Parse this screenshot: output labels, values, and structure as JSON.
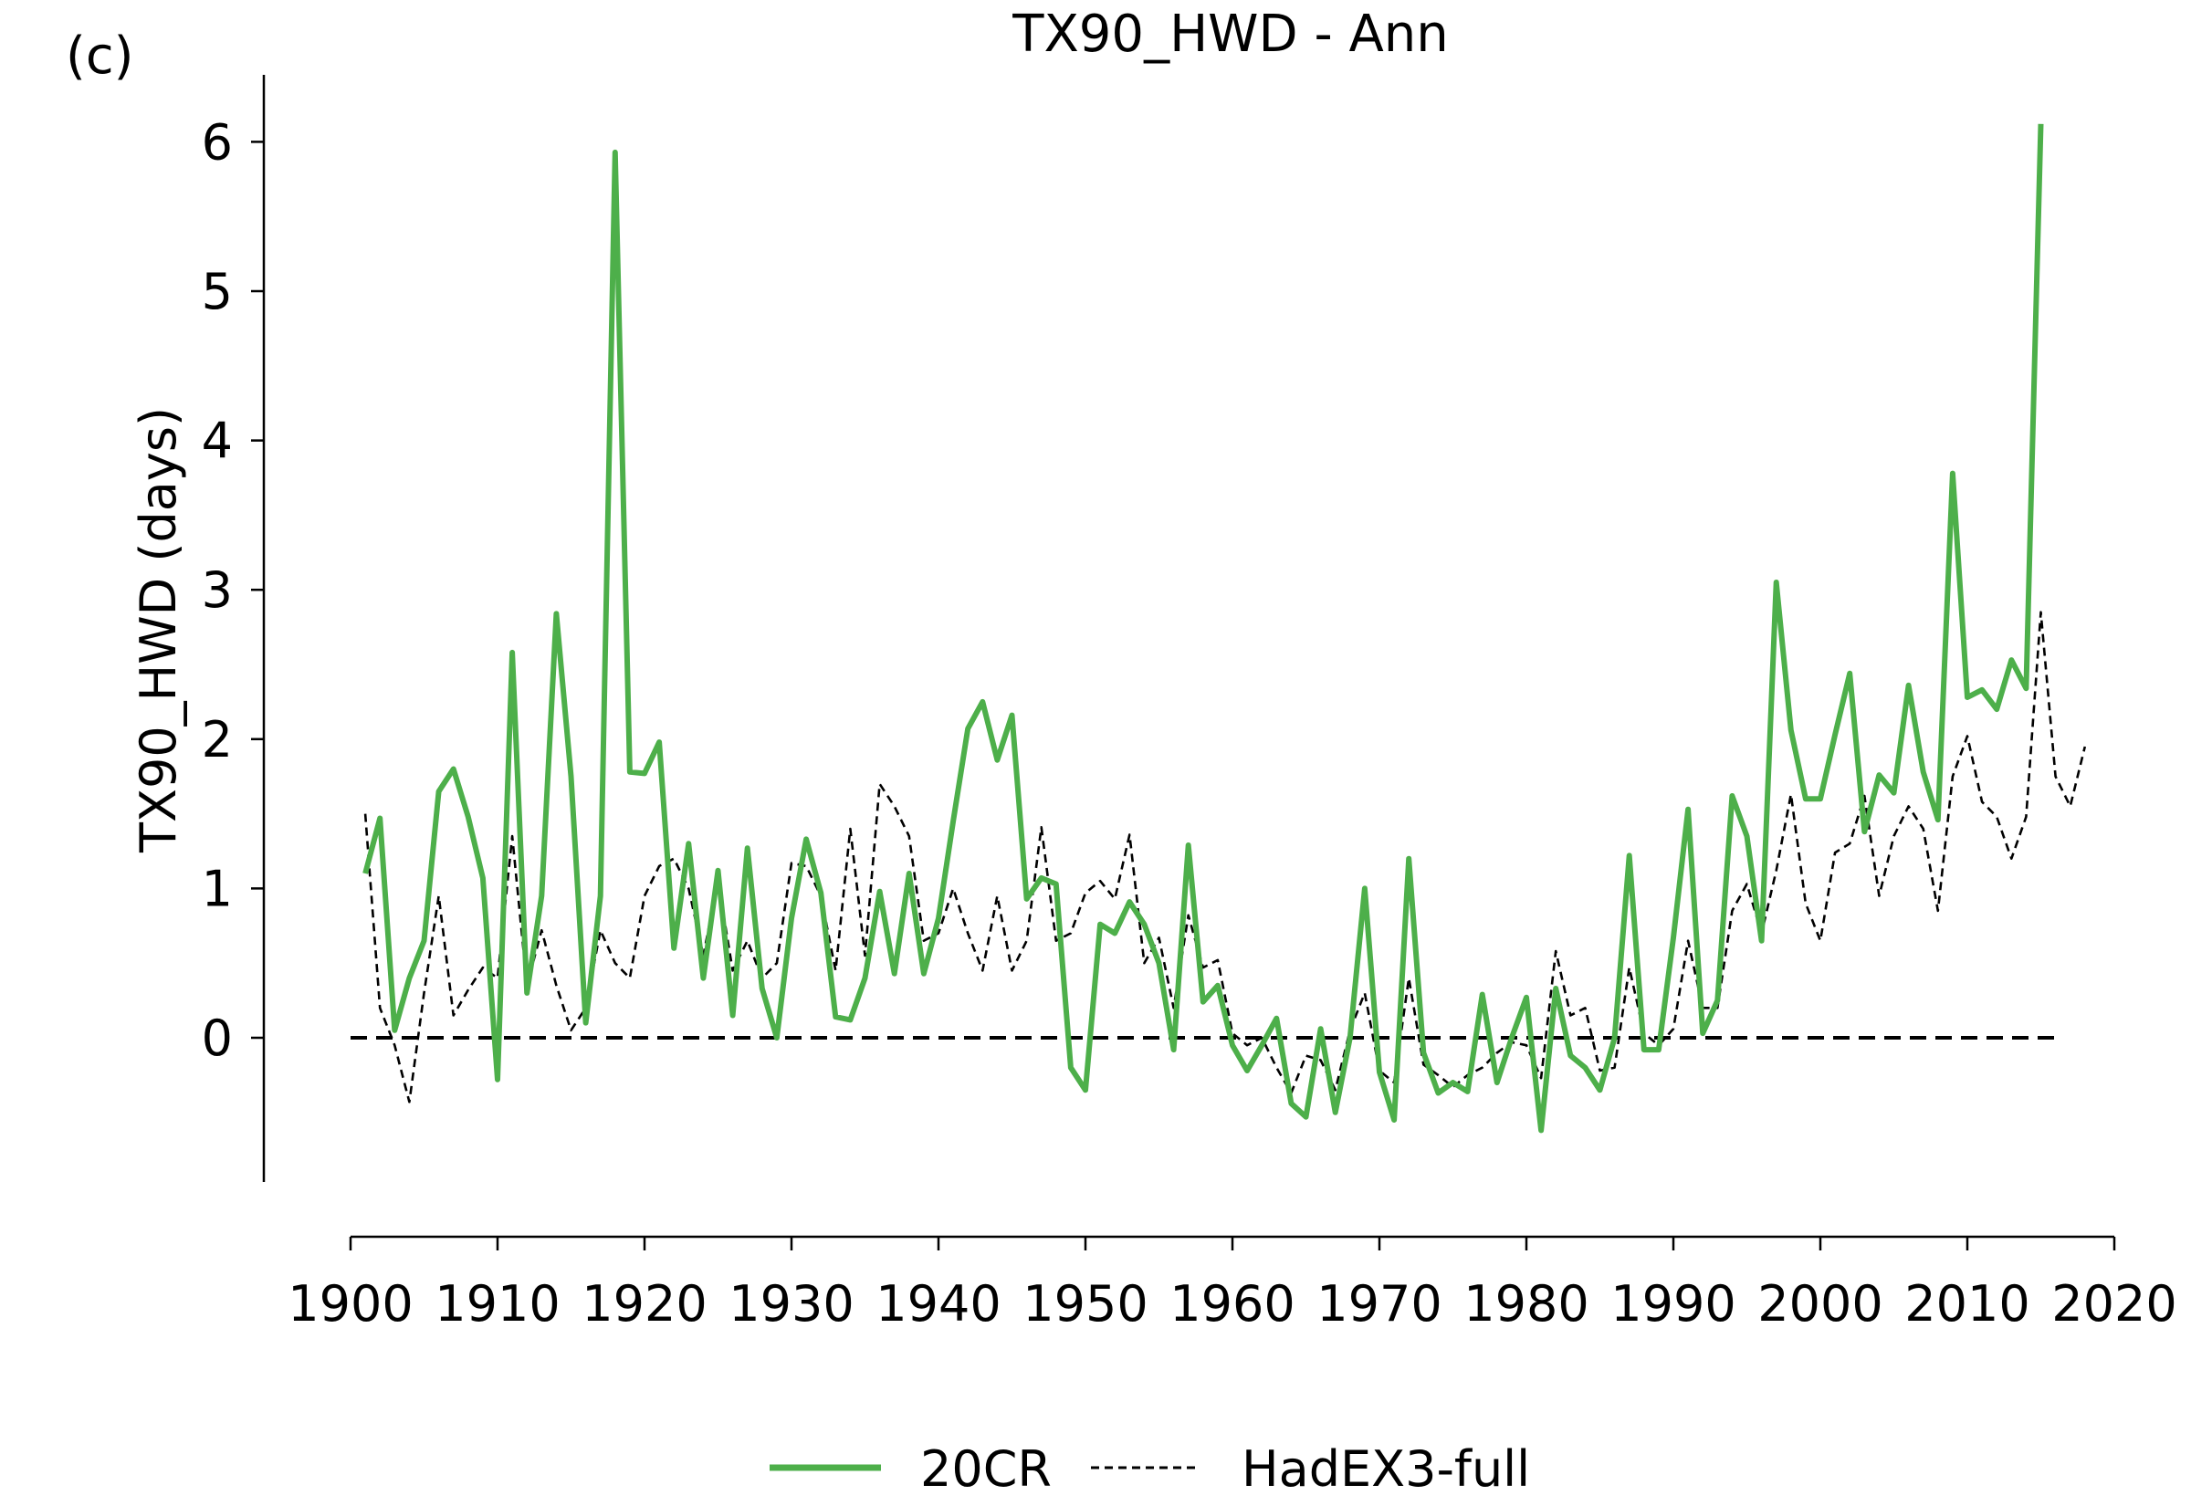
{
  "chart_data": {
    "type": "line",
    "panel_label": "(c)",
    "title": "TX90_HWD - Ann",
    "xlabel": "",
    "ylabel": "TX90_HWD (days)",
    "xlim": [
      1900,
      2020
    ],
    "ylim": [
      -1,
      6.45
    ],
    "x_ticks": [
      1900,
      1910,
      1920,
      1930,
      1940,
      1950,
      1960,
      1970,
      1980,
      1990,
      2000,
      2010,
      2020
    ],
    "y_ticks": [
      0,
      1,
      2,
      3,
      4,
      5,
      6
    ],
    "grid": false,
    "legend": "bottom-center",
    "reference_line": 0,
    "colors": {
      "20CR": "#4daf4a",
      "HadEX3-full": "#000000"
    },
    "series": [
      {
        "name": "20CR",
        "start_year": 1901,
        "values": [
          1.1,
          1.47,
          0.05,
          0.4,
          0.65,
          1.65,
          1.8,
          1.48,
          1.07,
          -0.28,
          2.58,
          0.3,
          0.95,
          2.84,
          1.75,
          0.1,
          0.95,
          5.93,
          1.78,
          1.77,
          1.98,
          0.6,
          1.3,
          0.4,
          1.12,
          0.15,
          1.27,
          0.33,
          0.0,
          0.8,
          1.33,
          0.97,
          0.14,
          0.12,
          0.4,
          0.98,
          0.43,
          1.1,
          0.43,
          0.8,
          1.45,
          2.07,
          2.25,
          1.86,
          2.16,
          0.93,
          1.07,
          1.03,
          -0.2,
          -0.35,
          0.76,
          0.7,
          0.91,
          0.76,
          0.5,
          -0.08,
          1.29,
          0.24,
          0.35,
          -0.05,
          -0.22,
          -0.05,
          0.13,
          -0.44,
          -0.53,
          0.06,
          -0.5,
          0.0,
          1.0,
          -0.23,
          -0.55,
          1.2,
          -0.1,
          -0.37,
          -0.3,
          -0.36,
          0.29,
          -0.3,
          0.0,
          0.27,
          -0.62,
          0.33,
          -0.12,
          -0.2,
          -0.35,
          0.0,
          1.22,
          -0.08,
          -0.08,
          0.67,
          1.53,
          0.03,
          0.25,
          1.62,
          1.35,
          0.65,
          3.05,
          2.06,
          1.6,
          1.6,
          2.03,
          2.44,
          1.38,
          1.76,
          1.64,
          2.36,
          1.78,
          1.46,
          3.78,
          2.28,
          2.33,
          2.2,
          2.53,
          2.34,
          6.12
        ]
      },
      {
        "name": "HadEX3-full",
        "start_year": 1901,
        "values": [
          1.5,
          0.2,
          -0.05,
          -0.43,
          0.3,
          0.95,
          0.15,
          0.32,
          0.47,
          0.4,
          1.35,
          0.35,
          0.72,
          0.35,
          0.05,
          0.2,
          0.72,
          0.5,
          0.4,
          0.95,
          1.15,
          1.2,
          1.0,
          0.55,
          1.05,
          0.45,
          0.65,
          0.4,
          0.5,
          1.17,
          1.15,
          0.95,
          0.45,
          1.4,
          0.55,
          1.7,
          1.55,
          1.35,
          0.65,
          0.7,
          1.0,
          0.7,
          0.45,
          0.95,
          0.45,
          0.65,
          1.41,
          0.65,
          0.7,
          0.97,
          1.05,
          0.93,
          1.36,
          0.5,
          0.67,
          0.2,
          0.82,
          0.47,
          0.52,
          0.03,
          -0.05,
          0.0,
          -0.2,
          -0.37,
          -0.12,
          -0.15,
          -0.35,
          0.05,
          0.3,
          -0.22,
          -0.3,
          0.4,
          -0.18,
          -0.25,
          -0.33,
          -0.25,
          -0.2,
          -0.1,
          -0.03,
          -0.05,
          -0.27,
          0.58,
          0.15,
          0.2,
          -0.22,
          -0.2,
          0.47,
          0.03,
          -0.05,
          0.06,
          0.65,
          0.2,
          0.2,
          0.85,
          1.03,
          0.7,
          1.12,
          1.63,
          0.9,
          0.65,
          1.24,
          1.3,
          1.62,
          0.95,
          1.35,
          1.55,
          1.4,
          0.85,
          1.75,
          2.02,
          1.58,
          1.48,
          1.2,
          1.48,
          2.85,
          1.75,
          1.55,
          1.95
        ]
      }
    ]
  }
}
